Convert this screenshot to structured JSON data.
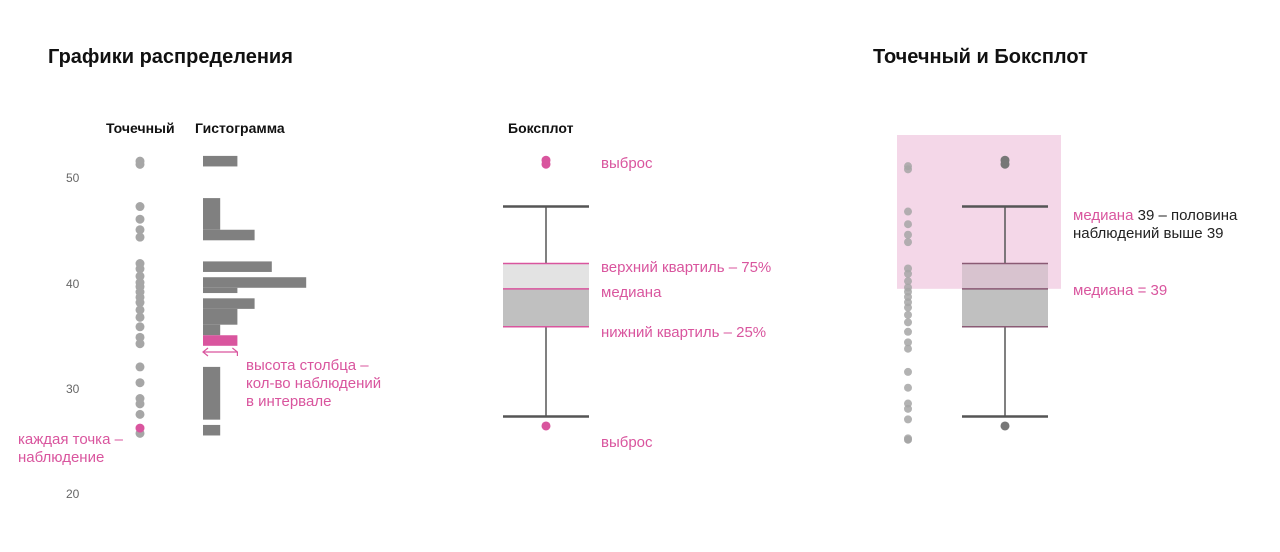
{
  "titles": {
    "left": "Графики распределения",
    "right": "Точечный и Боксплот"
  },
  "headers": {
    "dot": "Точечный",
    "hist": "Гистограмма",
    "box": "Боксплот"
  },
  "y_ticks": [
    "50",
    "40",
    "30",
    "20"
  ],
  "annotations": {
    "each_dot_line1": "каждая точка –",
    "each_dot_line2": "наблюдение",
    "bar_height_line1": "высота столбца –",
    "bar_height_line2": "кол-во наблюдений",
    "bar_height_line3": "в интервале",
    "outlier_top": "выброс",
    "outlier_bottom": "выброс",
    "upper_quartile": "верхний квартиль – 75%",
    "median": "медиана",
    "lower_quartile": "нижний квартиль – 25%",
    "right_median_word": "медиана",
    "right_median_rest": " 39 – половина",
    "right_median_line2": "наблюдений выше 39",
    "right_median_eq": "медиана = 39"
  },
  "colors": {
    "accent": "#d9559e",
    "bar": "#808080",
    "dot": "#a6a6a6",
    "box_upper": "#e3e3e3",
    "box_lower": "#c0c0c0",
    "highlight": "#f4d7e8",
    "whisker": "#555555"
  },
  "chart_data": {
    "type": "scatter",
    "observations": [
      51.5,
      51.2,
      47.2,
      46.0,
      45.0,
      44.3,
      41.8,
      41.3,
      40.6,
      40.0,
      39.6,
      39.1,
      38.6,
      38.1,
      37.4,
      36.7,
      35.8,
      34.8,
      34.2,
      32.0,
      30.5,
      29.0,
      28.5,
      27.5,
      25.7
    ],
    "highlighted_observation": 26.2,
    "histogram": [
      {
        "from": 51,
        "to": 52,
        "length": 4
      },
      {
        "from": 45,
        "to": 48,
        "length": 2
      },
      {
        "from": 44,
        "to": 45,
        "length": 6
      },
      {
        "from": 41,
        "to": 42,
        "length": 8
      },
      {
        "from": 39.5,
        "to": 40.5,
        "length": 12
      },
      {
        "from": 39,
        "to": 39.5,
        "length": 4
      },
      {
        "from": 37.5,
        "to": 38.5,
        "length": 6
      },
      {
        "from": 36,
        "to": 37.5,
        "length": 4
      },
      {
        "from": 35,
        "to": 36,
        "length": 2
      },
      {
        "from": 27,
        "to": 32,
        "length": 2
      },
      {
        "from": 25.5,
        "to": 26.5,
        "length": 2
      }
    ],
    "highlighted_bin": {
      "from": 34,
      "to": 35,
      "length": 4
    },
    "boxplot": {
      "whisker_high": 47.2,
      "q3": 41.8,
      "median": 39.4,
      "q1": 35.8,
      "whisker_low": 27.3,
      "outliers": [
        51.4,
        26.4
      ]
    },
    "y_ticks": [
      50,
      40,
      30,
      20
    ]
  }
}
